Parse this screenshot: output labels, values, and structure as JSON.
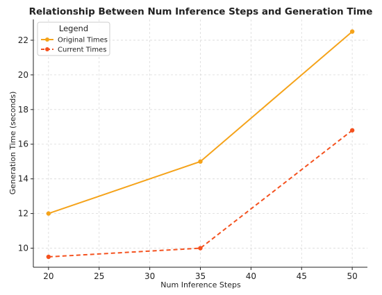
{
  "chart_data": {
    "type": "line",
    "title": "Relationship Between Num Inference Steps and Generation Time",
    "xlabel": "Num Inference Steps",
    "ylabel": "Generation Time (seconds)",
    "x": [
      20,
      35,
      50
    ],
    "xlim": [
      18.5,
      51.5
    ],
    "ylim": [
      8.9,
      23.2
    ],
    "xticks": [
      20,
      25,
      30,
      35,
      40,
      45,
      50
    ],
    "yticks": [
      10,
      12,
      14,
      16,
      18,
      20,
      22
    ],
    "grid": true,
    "legend": {
      "title": "Legend",
      "placement": "top-left"
    },
    "series": [
      {
        "name": "Original Times",
        "values": [
          12,
          15,
          22.5
        ],
        "color": "#f5a31a",
        "style": "solid"
      },
      {
        "name": "Current Times",
        "values": [
          9.5,
          10,
          16.8
        ],
        "color": "#f4511e",
        "style": "dashed"
      }
    ]
  }
}
